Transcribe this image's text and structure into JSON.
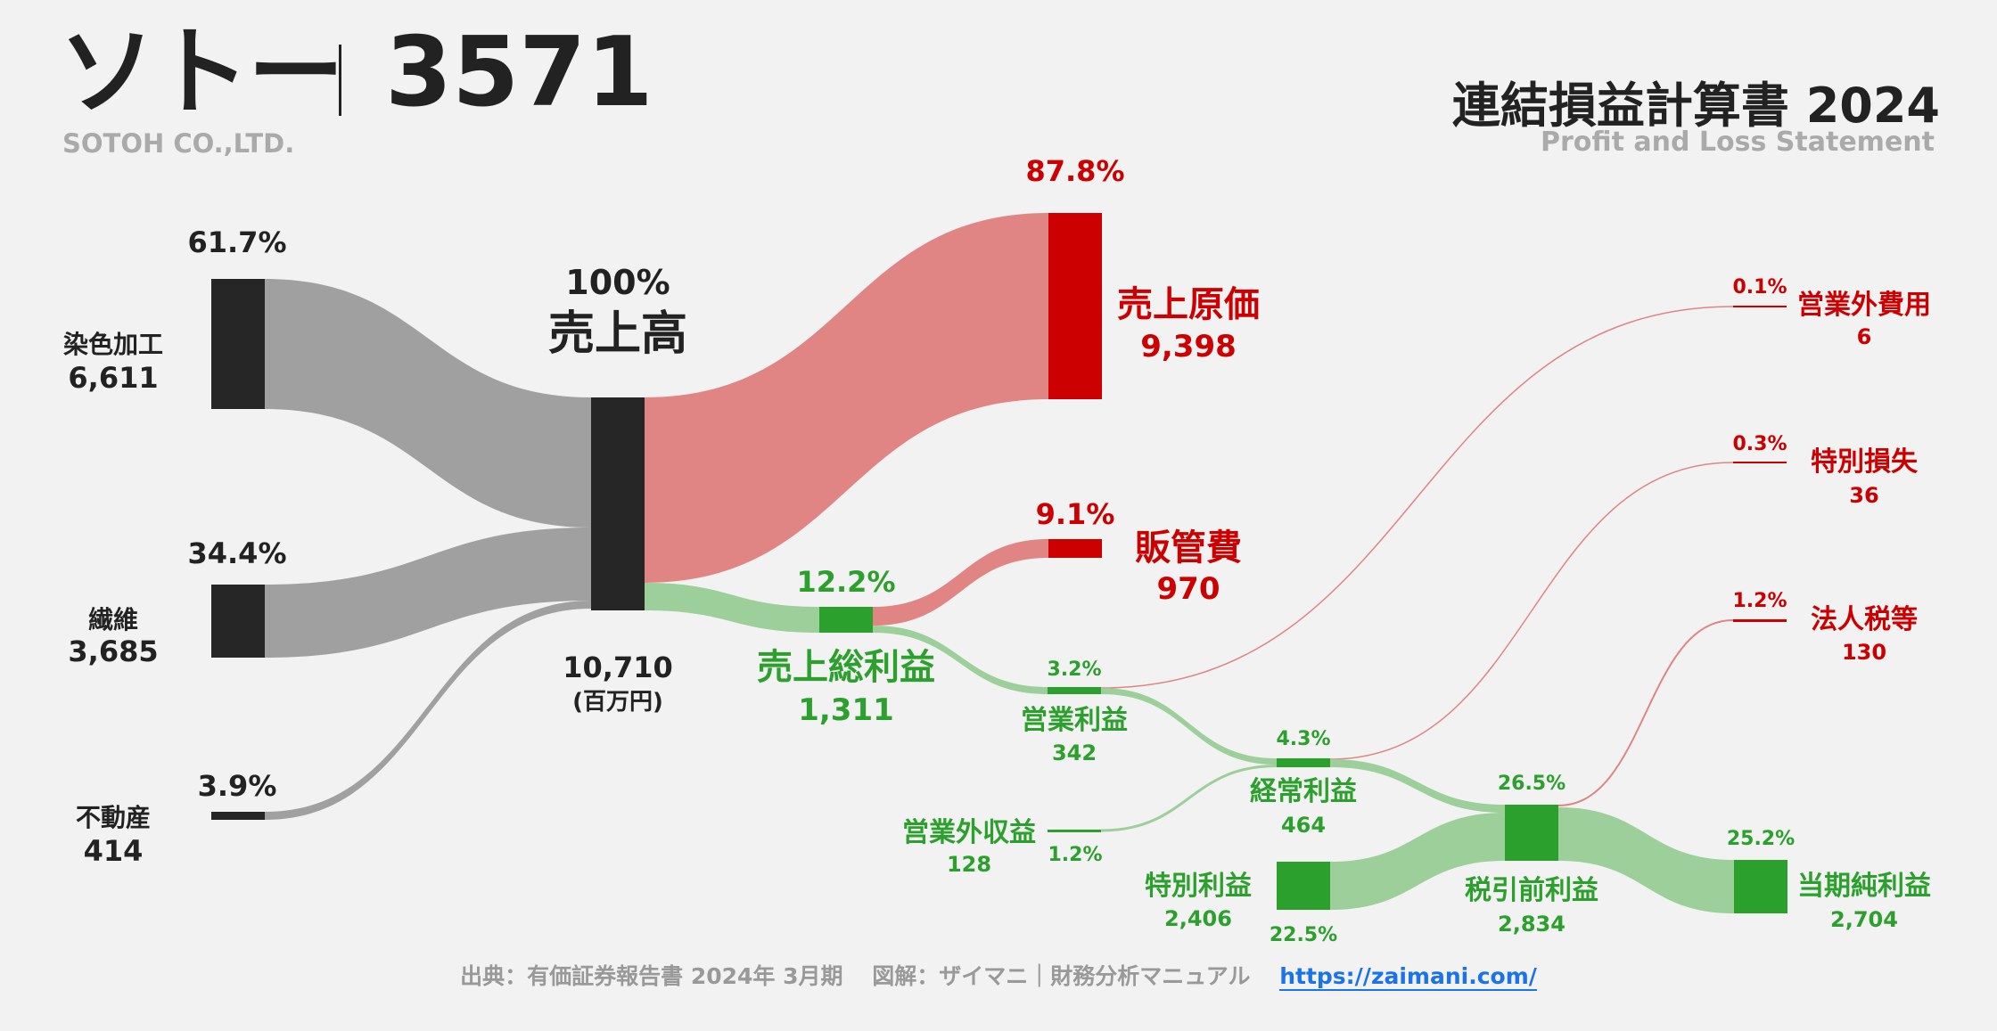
{
  "header": {
    "company_name": "ソトー",
    "ticker": "3571",
    "company_en": "SOTOH CO.,LTD.",
    "statement_title": "連結損益計算書 2024",
    "statement_subtitle": "Profit and Loss Statement"
  },
  "footer": {
    "source": "出典：有価証券報告書 2024年 3月期",
    "credit": "図解：ザイマニ｜財務分析マニュアル",
    "link": "https://zaimani.com/"
  },
  "colors": {
    "dark": "#262626",
    "gray_flow": "#a0a0a0",
    "red": "#cc0000",
    "red_flow": "#e08484",
    "green": "#2ca02c",
    "green_flow": "#9dcf9a",
    "background": "#f2f2f2"
  },
  "chart_data": {
    "type": "sankey",
    "title": "連結損益計算書 2024",
    "unit": "(百万円)",
    "nodes": [
      {
        "id": "dye",
        "label": "染色加工",
        "value": 6611,
        "value_text": "6,611",
        "pct": "61.7%"
      },
      {
        "id": "fiber",
        "label": "繊維",
        "value": 3685,
        "value_text": "3,685",
        "pct": "34.4%"
      },
      {
        "id": "realestate",
        "label": "不動産",
        "value": 414,
        "value_text": "414",
        "pct": "3.9%"
      },
      {
        "id": "revenue",
        "label": "売上高",
        "value": 10710,
        "value_text": "10,710",
        "pct": "100%"
      },
      {
        "id": "cogs",
        "label": "売上原価",
        "value": 9398,
        "value_text": "9,398",
        "pct": "87.8%"
      },
      {
        "id": "gross",
        "label": "売上総利益",
        "value": 1311,
        "value_text": "1,311",
        "pct": "12.2%"
      },
      {
        "id": "sga",
        "label": "販管費",
        "value": 970,
        "value_text": "970",
        "pct": "9.1%"
      },
      {
        "id": "op",
        "label": "営業利益",
        "value": 342,
        "value_text": "342",
        "pct": "3.2%"
      },
      {
        "id": "nonop_inc",
        "label": "営業外収益",
        "value": 128,
        "value_text": "128",
        "pct": "1.2%"
      },
      {
        "id": "nonop_exp",
        "label": "営業外費用",
        "value": 6,
        "value_text": "6",
        "pct": "0.1%"
      },
      {
        "id": "ordinary",
        "label": "経常利益",
        "value": 464,
        "value_text": "464",
        "pct": "4.3%"
      },
      {
        "id": "ext_gain",
        "label": "特別利益",
        "value": 2406,
        "value_text": "2,406",
        "pct": "22.5%"
      },
      {
        "id": "ext_loss",
        "label": "特別損失",
        "value": 36,
        "value_text": "36",
        "pct": "0.3%"
      },
      {
        "id": "pretax",
        "label": "税引前利益",
        "value": 2834,
        "value_text": "2,834",
        "pct": "26.5%"
      },
      {
        "id": "tax",
        "label": "法人税等",
        "value": 130,
        "value_text": "130",
        "pct": "1.2%"
      },
      {
        "id": "net",
        "label": "当期純利益",
        "value": 2704,
        "value_text": "2,704",
        "pct": "25.2%"
      }
    ],
    "links": [
      {
        "source": "dye",
        "target": "revenue",
        "value": 6611
      },
      {
        "source": "fiber",
        "target": "revenue",
        "value": 3685
      },
      {
        "source": "realestate",
        "target": "revenue",
        "value": 414
      },
      {
        "source": "revenue",
        "target": "cogs",
        "value": 9398
      },
      {
        "source": "revenue",
        "target": "gross",
        "value": 1311
      },
      {
        "source": "gross",
        "target": "sga",
        "value": 970
      },
      {
        "source": "gross",
        "target": "op",
        "value": 342
      },
      {
        "source": "op",
        "target": "ordinary",
        "value": 342
      },
      {
        "source": "nonop_inc",
        "target": "ordinary",
        "value": 128
      },
      {
        "source": "op",
        "target": "nonop_exp",
        "value": 6
      },
      {
        "source": "ordinary",
        "target": "pretax",
        "value": 464
      },
      {
        "source": "ext_gain",
        "target": "pretax",
        "value": 2406
      },
      {
        "source": "ordinary",
        "target": "ext_loss",
        "value": 36
      },
      {
        "source": "pretax",
        "target": "tax",
        "value": 130
      },
      {
        "source": "pretax",
        "target": "net",
        "value": 2704
      }
    ]
  }
}
